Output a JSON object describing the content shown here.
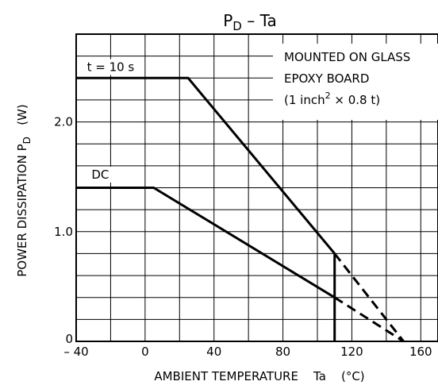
{
  "chart_data": {
    "type": "line",
    "title": "PD – Ta",
    "title_main": "P",
    "title_sub": "D",
    "title_rest": " – Ta",
    "xlabel": "AMBIENT TEMPERATURE    Ta    (°C)",
    "ylabel_main": "POWER DISSIPATION P",
    "ylabel_sub": "D",
    "ylabel_unit": "(W)",
    "xlim": [
      -40,
      170
    ],
    "ylim": [
      0,
      2.8
    ],
    "x_ticks": [
      {
        "value": -40,
        "label": "– 40"
      },
      {
        "value": 0,
        "label": "0"
      },
      {
        "value": 40,
        "label": "40"
      },
      {
        "value": 80,
        "label": "80"
      },
      {
        "value": 120,
        "label": "120"
      },
      {
        "value": 160,
        "label": "160"
      }
    ],
    "y_ticks": [
      {
        "value": 0,
        "label": "0"
      },
      {
        "value": 1.0,
        "label": "1.0"
      },
      {
        "value": 2.0,
        "label": "2.0"
      }
    ],
    "grid": true,
    "x_grid_step": 20,
    "y_grid_step": 0.2,
    "series": [
      {
        "name": "t = 10 s",
        "style": "solid",
        "x": [
          -40,
          25,
          110,
          110
        ],
        "y": [
          2.4,
          2.4,
          0.8,
          0
        ]
      },
      {
        "name": "DC",
        "style": "solid",
        "x": [
          -40,
          5,
          110
        ],
        "y": [
          1.4,
          1.4,
          0.4
        ]
      },
      {
        "name": "",
        "style": "dashed",
        "x": [
          110,
          150
        ],
        "y": [
          0.8,
          0
        ]
      },
      {
        "name": "",
        "style": "dashed",
        "x": [
          110,
          150
        ],
        "y": [
          0.4,
          0
        ]
      }
    ],
    "series_labels": [
      {
        "text": "t = 10 s",
        "x": -20,
        "y": 2.5
      },
      {
        "text": "DC",
        "x": -26,
        "y": 1.52
      }
    ],
    "annotation": {
      "line1": "MOUNTED ON GLASS",
      "line2": "EPOXY BOARD",
      "line3_a": "(1 inch",
      "line3_sup": "2",
      "line3_b": " × 0.8 t)"
    }
  }
}
